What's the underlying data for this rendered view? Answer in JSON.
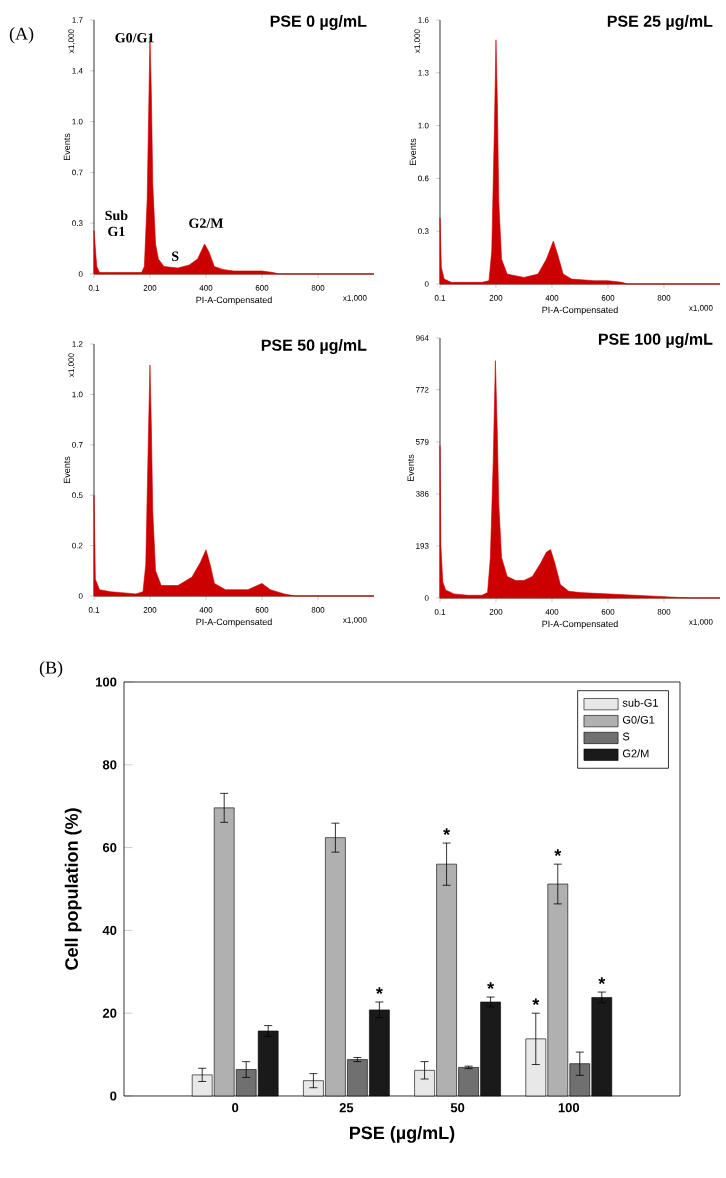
{
  "chart_data": [
    {
      "type": "area",
      "title": "PSE 0 µg/mL",
      "xlabel": "PI-A-Compensated",
      "ylabel": "Events",
      "color": "#cc0000",
      "x": [
        0.1,
        10,
        20,
        50,
        150,
        170,
        180,
        190,
        200,
        205,
        210,
        220,
        230,
        250,
        300,
        340,
        370,
        395,
        410,
        430,
        460,
        500,
        560,
        600,
        640,
        660,
        700,
        1000
      ],
      "values": [
        0.29,
        0.05,
        0.01,
        0.01,
        0.01,
        0.01,
        0.05,
        0.5,
        1.59,
        1.2,
        0.6,
        0.2,
        0.1,
        0.05,
        0.04,
        0.06,
        0.1,
        0.2,
        0.15,
        0.05,
        0.03,
        0.02,
        0.02,
        0.02,
        0.01,
        0,
        0,
        0
      ],
      "xlim": [
        0.1,
        1000
      ],
      "ylim": [
        0,
        1.7
      ],
      "xticks": [
        0.1,
        200,
        400,
        600,
        800
      ],
      "yticks": [
        0,
        {
          "value": 0.34,
          "label": "0.3"
        },
        {
          "value": 0.68,
          "label": "0.7"
        },
        {
          "value": 1.02,
          "label": "1.0"
        },
        {
          "value": 1.36,
          "label": "1.4"
        },
        1.7
      ],
      "annotations": [
        "(A)",
        "x1,000",
        "x1,000",
        "G0/G1",
        "Sub G1",
        "S",
        "G2/M"
      ]
    },
    {
      "type": "area",
      "title": "PSE 25 µg/mL",
      "xlabel": "PI-A-Compensated",
      "ylabel": "Events",
      "color": "#cc0000",
      "x": [
        0.1,
        5,
        15,
        40,
        150,
        175,
        185,
        195,
        200,
        205,
        210,
        220,
        240,
        300,
        350,
        380,
        405,
        420,
        440,
        470,
        550,
        600,
        650,
        670,
        1000
      ],
      "values": [
        0.4,
        0.1,
        0.03,
        0.01,
        0.01,
        0.02,
        0.2,
        1.0,
        1.48,
        1.1,
        0.5,
        0.15,
        0.06,
        0.04,
        0.06,
        0.15,
        0.26,
        0.18,
        0.06,
        0.03,
        0.02,
        0.02,
        0.01,
        0,
        0
      ],
      "xlim": [
        0.1,
        1000
      ],
      "ylim": [
        0,
        1.6
      ],
      "xticks": [
        0.1,
        200,
        400,
        600,
        800
      ],
      "yticks": [
        0,
        {
          "value": 0.32,
          "label": "0.3"
        },
        {
          "value": 0.64,
          "label": "0.6"
        },
        {
          "value": 0.96,
          "label": "1.0"
        },
        {
          "value": 1.28,
          "label": "1.3"
        },
        1.6
      ],
      "annotations": [
        "x1,000",
        "x1,000"
      ]
    },
    {
      "type": "area",
      "title": "PSE 50 µg/mL",
      "xlabel": "PI-A-Compensated",
      "ylabel": "Events",
      "color": "#cc0000",
      "x": [
        0.1,
        5,
        20,
        60,
        150,
        175,
        185,
        195,
        200,
        205,
        210,
        220,
        240,
        300,
        350,
        380,
        400,
        415,
        430,
        470,
        550,
        600,
        630,
        680,
        720,
        1000
      ],
      "values": [
        0.48,
        0.08,
        0.03,
        0.02,
        0.01,
        0.02,
        0.15,
        0.8,
        1.1,
        0.8,
        0.4,
        0.12,
        0.05,
        0.05,
        0.09,
        0.16,
        0.22,
        0.15,
        0.06,
        0.03,
        0.03,
        0.06,
        0.03,
        0.01,
        0,
        0
      ],
      "xlim": [
        0.1,
        1000
      ],
      "ylim": [
        0,
        1.2
      ],
      "xticks": [
        0.1,
        200,
        400,
        600,
        800
      ],
      "yticks": [
        0,
        {
          "value": 0.24,
          "label": "0.2"
        },
        {
          "value": 0.48,
          "label": "0.5"
        },
        {
          "value": 0.72,
          "label": "0.7"
        },
        {
          "value": 0.96,
          "label": "1.0"
        },
        1.2
      ],
      "annotations": [
        "x1,000",
        "x1,000"
      ]
    },
    {
      "type": "area",
      "title": "PSE 100 µg/mL",
      "xlabel": "PI-A-Compensated",
      "ylabel": "Events",
      "color": "#cc0000",
      "x": [
        0.1,
        3,
        10,
        20,
        50,
        100,
        150,
        170,
        180,
        190,
        198,
        205,
        210,
        220,
        240,
        270,
        300,
        330,
        360,
        380,
        395,
        410,
        430,
        460,
        500,
        600,
        700,
        800,
        850,
        900,
        1000
      ],
      "values": [
        565,
        200,
        60,
        30,
        15,
        10,
        10,
        20,
        150,
        500,
        880,
        600,
        350,
        150,
        80,
        65,
        65,
        80,
        130,
        170,
        180,
        130,
        50,
        25,
        20,
        15,
        10,
        5,
        2,
        0,
        0
      ],
      "xlim": [
        0.1,
        1000
      ],
      "ylim": [
        0,
        964
      ],
      "xticks": [
        0.1,
        200,
        400,
        600,
        800
      ],
      "yticks": [
        0,
        193,
        386,
        579,
        772,
        964
      ],
      "annotations": [
        "x1,000"
      ]
    },
    {
      "type": "bar",
      "xlabel": "PSE (µg/mL)",
      "ylabel": "Cell population (%)",
      "categories": [
        "0",
        "25",
        "50",
        "100"
      ],
      "ylim": [
        0,
        100
      ],
      "yticks": [
        0,
        20,
        40,
        60,
        80,
        100
      ],
      "legend": "top right",
      "series": [
        {
          "name": "sub-G1",
          "color": "#e8e8e8",
          "values": [
            5.1,
            3.7,
            6.2,
            13.8
          ],
          "errors": [
            1.6,
            1.7,
            2.1,
            6.2
          ],
          "value_labels": [
            null,
            null,
            null,
            "*"
          ]
        },
        {
          "name": "G0/G1",
          "color": "#b0b0b0",
          "values": [
            69.6,
            62.4,
            56,
            51.2
          ],
          "errors": [
            3.5,
            3.5,
            5.1,
            4.8
          ],
          "value_labels": [
            null,
            null,
            "*",
            "*"
          ]
        },
        {
          "name": "S",
          "color": "#707070",
          "values": [
            6.4,
            8.8,
            6.9,
            7.8
          ],
          "errors": [
            1.9,
            0.5,
            0.3,
            2.8
          ],
          "value_labels": [
            null,
            null,
            null,
            null
          ]
        },
        {
          "name": "G2/M",
          "color": "#1a1a1a",
          "values": [
            15.7,
            20.8,
            22.7,
            23.8
          ],
          "errors": [
            1.3,
            1.9,
            1.2,
            1.3
          ],
          "value_labels": [
            null,
            "*",
            "*",
            "*"
          ]
        }
      ],
      "annotations": [
        "(B)"
      ]
    }
  ]
}
